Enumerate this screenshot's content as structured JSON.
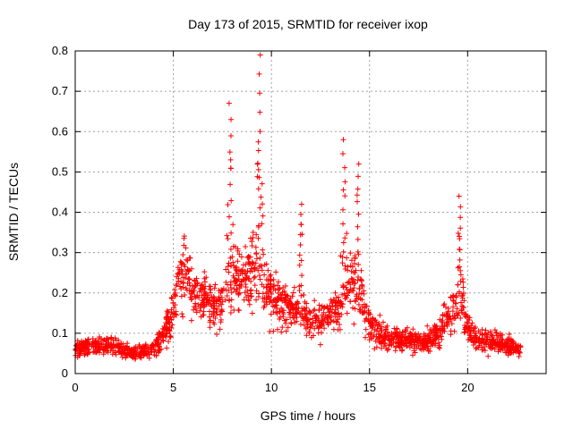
{
  "chart_data": {
    "type": "scatter",
    "title": "Day 173 of 2015, SRMTID for receiver ixop",
    "xlabel": "GPS time / hours",
    "ylabel": "SRMTID / TECUs",
    "xlim": [
      0,
      24
    ],
    "ylim": [
      0,
      0.8
    ],
    "xticks": [
      0,
      5,
      10,
      15,
      20
    ],
    "yticks": [
      0,
      0.1,
      0.2,
      0.3,
      0.4,
      0.5,
      0.6,
      0.7,
      0.8
    ],
    "xtick_labels": [
      "0",
      "5",
      "10",
      "15",
      "20"
    ],
    "ytick_labels": [
      "0",
      "0.1",
      "0.2",
      "0.3",
      "0.4",
      "0.5",
      "0.6",
      "0.7",
      "0.8"
    ],
    "grid": true,
    "marker": "+",
    "color": "#ff0000",
    "x_range_observed": [
      0,
      22.7
    ],
    "series_trend": {
      "x": [
        0,
        1,
        2,
        3,
        4,
        4.8,
        5.2,
        5.6,
        6,
        6.5,
        7,
        7.5,
        8,
        8.5,
        9,
        9.3,
        9.6,
        10,
        10.5,
        11,
        11.5,
        12,
        12.5,
        13,
        13.5,
        14,
        14.5,
        15,
        15.5,
        16,
        16.5,
        17,
        17.5,
        18,
        18.5,
        19,
        19.5,
        20,
        20.5,
        21,
        21.5,
        22,
        22.7
      ],
      "y": [
        0.06,
        0.07,
        0.07,
        0.05,
        0.06,
        0.12,
        0.22,
        0.26,
        0.2,
        0.18,
        0.17,
        0.18,
        0.22,
        0.24,
        0.26,
        0.25,
        0.22,
        0.19,
        0.18,
        0.16,
        0.14,
        0.14,
        0.13,
        0.15,
        0.17,
        0.22,
        0.2,
        0.12,
        0.1,
        0.09,
        0.08,
        0.09,
        0.08,
        0.08,
        0.1,
        0.14,
        0.18,
        0.12,
        0.08,
        0.08,
        0.08,
        0.07,
        0.06
      ]
    },
    "spikes": [
      {
        "x": 7.9,
        "y": 0.67
      },
      {
        "x": 9.4,
        "y": 0.79
      },
      {
        "x": 11.5,
        "y": 0.42
      },
      {
        "x": 13.7,
        "y": 0.58
      },
      {
        "x": 14.4,
        "y": 0.52
      },
      {
        "x": 19.6,
        "y": 0.44
      }
    ]
  }
}
